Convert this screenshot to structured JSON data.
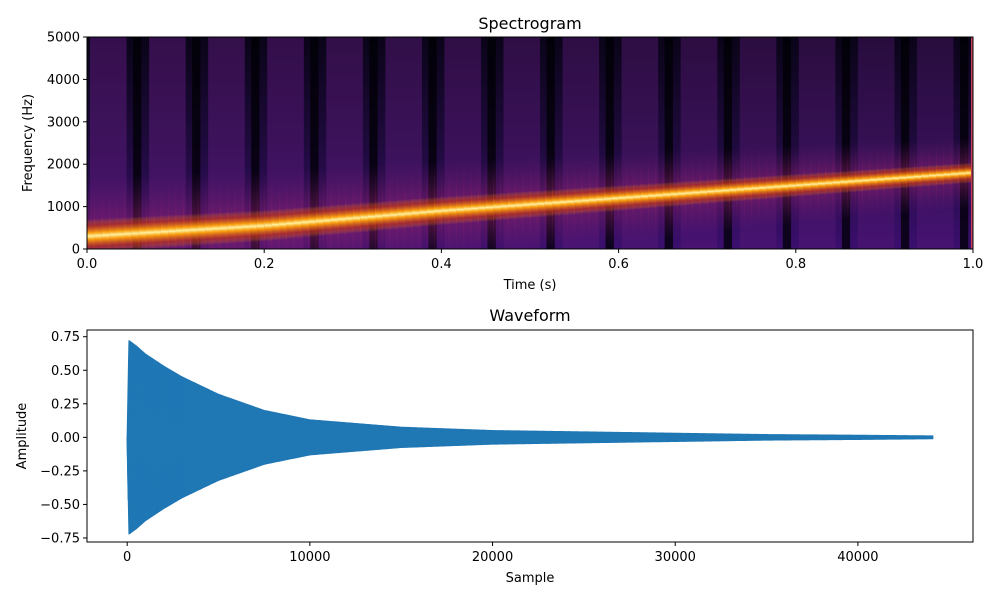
{
  "chart_data": [
    {
      "type": "heatmap",
      "title": "Spectrogram",
      "xlabel": "Time (s)",
      "ylabel": "Frequency (Hz)",
      "xlim": [
        0,
        1
      ],
      "ylim": [
        0,
        5000
      ],
      "xticks": [
        0,
        0.2,
        0.4,
        0.6,
        0.8,
        1.0
      ],
      "xtick_labels": [
        "0.0",
        "0.2",
        "0.4",
        "0.6",
        "0.8",
        "1.0"
      ],
      "yticks": [
        0,
        1000,
        2000,
        3000,
        4000,
        5000
      ],
      "ytick_labels": [
        "0",
        "1000",
        "2000",
        "3000",
        "4000",
        "5000"
      ],
      "colormap": "inferno",
      "ridge": {
        "description": "dominant linear chirp",
        "time": [
          0.0,
          0.2,
          0.4,
          0.6,
          0.8,
          1.0
        ],
        "frequency_hz": [
          300,
          550,
          900,
          1200,
          1500,
          1800
        ]
      }
    },
    {
      "type": "line",
      "title": "Waveform",
      "xlabel": "Sample",
      "ylabel": "Amplitude",
      "xlim": [
        -2200,
        46300
      ],
      "ylim": [
        -0.78,
        0.8
      ],
      "xticks": [
        0,
        10000,
        20000,
        30000,
        40000
      ],
      "xtick_labels": [
        "0",
        "10000",
        "20000",
        "30000",
        "40000"
      ],
      "yticks": [
        -0.75,
        -0.5,
        -0.25,
        0.0,
        0.25,
        0.5,
        0.75
      ],
      "ytick_labels": [
        "−0.75",
        "−0.50",
        "−0.25",
        "0.00",
        "0.25",
        "0.50",
        "0.75"
      ],
      "series": [
        {
          "name": "waveform",
          "color": "#1f77b4",
          "envelope_samples": [
            0,
            100,
            500,
            1000,
            2000,
            3000,
            5000,
            7500,
            10000,
            15000,
            20000,
            25000,
            30000,
            35000,
            40000,
            44100
          ],
          "envelope_amplitude": [
            0.0,
            0.72,
            0.68,
            0.62,
            0.53,
            0.45,
            0.32,
            0.2,
            0.13,
            0.075,
            0.05,
            0.04,
            0.03,
            0.02,
            0.015,
            0.01
          ]
        }
      ]
    }
  ]
}
